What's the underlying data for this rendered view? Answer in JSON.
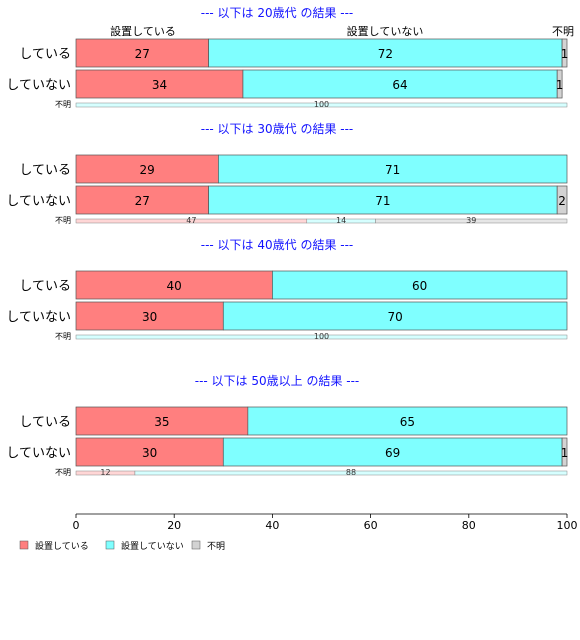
{
  "chart_data": {
    "type": "bar",
    "orientation": "horizontal",
    "stacked": true,
    "xlim": [
      0,
      100
    ],
    "x_ticks": [
      0,
      20,
      40,
      60,
      80,
      100
    ],
    "grid": false,
    "legend_position": "bottom-left",
    "column_labels": [
      "設置している",
      "設置していない",
      "不明"
    ],
    "legend": [
      {
        "name": "設置している",
        "color": "#ff7f7f"
      },
      {
        "name": "設置していない",
        "color": "#7fffff"
      },
      {
        "name": "不明",
        "color": "#d3d3d3"
      }
    ],
    "panels": [
      {
        "title": "--- 以下は 20歳代 の結果 ---",
        "categories": [
          "している",
          "していない"
        ],
        "series": [
          {
            "name": "設置している",
            "values": [
              27,
              34
            ]
          },
          {
            "name": "設置していない",
            "values": [
              72,
              64
            ]
          },
          {
            "name": "不明",
            "values": [
              1,
              1
            ]
          }
        ],
        "unknown_label": "不明",
        "unknown_values": [
          0,
          100,
          0
        ]
      },
      {
        "title": "--- 以下は 30歳代 の結果 ---",
        "categories": [
          "している",
          "していない"
        ],
        "series": [
          {
            "name": "設置している",
            "values": [
              29,
              27
            ]
          },
          {
            "name": "設置していない",
            "values": [
              71,
              71
            ]
          },
          {
            "name": "不明",
            "values": [
              0,
              2
            ]
          }
        ],
        "unknown_label": "不明",
        "unknown_values": [
          47,
          14,
          39
        ]
      },
      {
        "title": "--- 以下は 40歳代 の結果 ---",
        "categories": [
          "している",
          "していない"
        ],
        "series": [
          {
            "name": "設置している",
            "values": [
              40,
              30
            ]
          },
          {
            "name": "設置していない",
            "values": [
              60,
              70
            ]
          },
          {
            "name": "不明",
            "values": [
              0,
              0
            ]
          }
        ],
        "unknown_label": "不明",
        "unknown_values": [
          0,
          100,
          0
        ]
      },
      {
        "title": "--- 以下は 50歳以上 の結果 ---",
        "categories": [
          "している",
          "していない"
        ],
        "series": [
          {
            "name": "設置している",
            "values": [
              35,
              30
            ]
          },
          {
            "name": "設置していない",
            "values": [
              65,
              69
            ]
          },
          {
            "name": "不明",
            "values": [
              0,
              1
            ]
          }
        ],
        "unknown_label": "不明",
        "unknown_values": [
          12,
          88,
          0
        ]
      }
    ]
  }
}
